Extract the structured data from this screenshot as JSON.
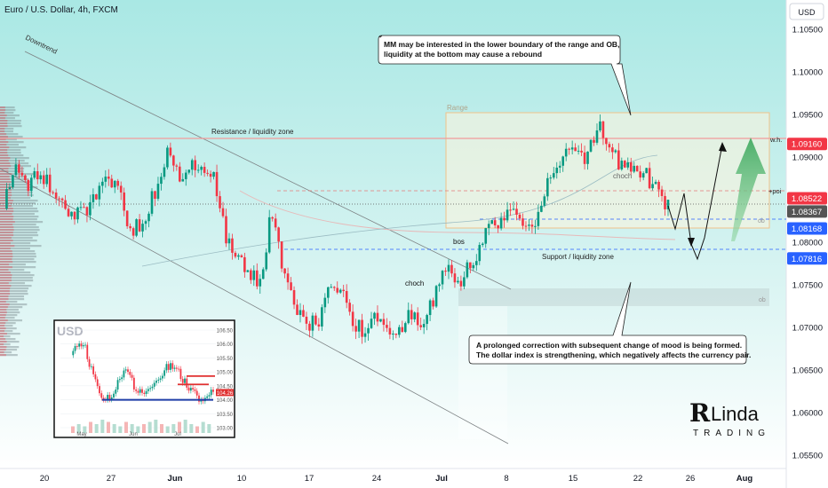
{
  "header": {
    "symbol_title": "Euro / U.S. Dollar, 4h, FXCM"
  },
  "price_axis": {
    "currency": "USD",
    "ticks": [
      "1.10500",
      "1.10000",
      "1.09500",
      "1.09000",
      "1.08500",
      "1.08000",
      "1.07500",
      "1.07000",
      "1.06500",
      "1.06000",
      "1.05500"
    ]
  },
  "time_axis": {
    "ticks": [
      "20",
      "27",
      "Jun",
      "10",
      "17",
      "24",
      "Jul",
      "8",
      "15",
      "22",
      "26",
      "Aug"
    ]
  },
  "price_tags": [
    {
      "value": "1.09160",
      "color": "#f23645"
    },
    {
      "value": "1.08522",
      "color": "#f23645"
    },
    {
      "value": "1.08367",
      "color": "#555555"
    },
    {
      "value": "1.08168",
      "color": "#2962ff"
    },
    {
      "value": "1.07816",
      "color": "#2962ff"
    }
  ],
  "annotations": {
    "downtrend": "Downtrend",
    "resistance": "Resistance / liquidity zone",
    "support": "Support / liquidity zone",
    "range": "Range",
    "bos": "bos",
    "choch_low": "choch",
    "choch_high": "choch",
    "ob_upper": "ob",
    "ob_lower": "ob",
    "wh": "w.h.",
    "poi": "+poi",
    "callout_top_line1": "MM may be interested in the lower boundary of the range and OB,",
    "callout_top_line2": "liquidity at the bottom may cause a rebound",
    "callout_bottom_line1": "A prolonged correction with subsequent change of mood is being formed.",
    "callout_bottom_line2": "The dollar index is strengthening, which negatively affects the currency pair."
  },
  "inset": {
    "title": "USD",
    "price_ticks": [
      "106.50",
      "106.00",
      "105.50",
      "105.00",
      "104.50",
      "104.00",
      "103.50",
      "103.00"
    ],
    "time_ticks": [
      "May",
      "Jun",
      "Jul"
    ],
    "price_tag": "104.26"
  },
  "logo": {
    "line1": "Linda",
    "line2": "TRADING"
  },
  "colors": {
    "up": "#089981",
    "down": "#f23645",
    "range_fill": "#fff3d6",
    "range_border": "#f0c28a",
    "resistance_line": "#f4a1a1",
    "support_line": "#2962ff",
    "bullish_arrow": "#5dbb7a"
  },
  "chart_data": {
    "type": "candlestick",
    "title": "Euro / U.S. Dollar, 4h, FXCM",
    "ylabel": "USD",
    "ylim": [
      1.0535,
      1.1085
    ],
    "x_tick_labels": [
      "20",
      "27",
      "Jun",
      "10",
      "17",
      "24",
      "Jul",
      "8",
      "15",
      "22",
      "26",
      "Aug"
    ],
    "close_path_approx": [
      [
        0,
        1.084
      ],
      [
        3,
        1.0895
      ],
      [
        6,
        1.087
      ],
      [
        9,
        1.088
      ],
      [
        12,
        1.087
      ],
      [
        15,
        1.084
      ],
      [
        18,
        1.0825
      ],
      [
        21,
        1.084
      ],
      [
        24,
        1.0855
      ],
      [
        27,
        1.088
      ],
      [
        30,
        1.0855
      ],
      [
        33,
        1.081
      ],
      [
        36,
        1.083
      ],
      [
        39,
        1.086
      ],
      [
        42,
        1.091
      ],
      [
        45,
        1.088
      ],
      [
        48,
        1.089
      ],
      [
        51,
        1.0895
      ],
      [
        54,
        1.088
      ],
      [
        57,
        1.081
      ],
      [
        60,
        1.078
      ],
      [
        63,
        1.077
      ],
      [
        66,
        1.075
      ],
      [
        69,
        1.084
      ],
      [
        72,
        1.076
      ],
      [
        75,
        1.073
      ],
      [
        78,
        1.07
      ],
      [
        81,
        1.071
      ],
      [
        84,
        1.0745
      ],
      [
        87,
        1.074
      ],
      [
        90,
        1.071
      ],
      [
        93,
        1.0695
      ],
      [
        96,
        1.072
      ],
      [
        99,
        1.07
      ],
      [
        102,
        1.0695
      ],
      [
        105,
        1.072
      ],
      [
        108,
        1.07
      ],
      [
        111,
        1.074
      ],
      [
        114,
        1.077
      ],
      [
        117,
        1.075
      ],
      [
        120,
        1.0775
      ],
      [
        123,
        1.08
      ],
      [
        126,
        1.082
      ],
      [
        129,
        1.0835
      ],
      [
        132,
        1.083
      ],
      [
        135,
        1.0815
      ],
      [
        138,
        1.083
      ],
      [
        141,
        1.089
      ],
      [
        144,
        1.09
      ],
      [
        147,
        1.0905
      ],
      [
        150,
        1.09
      ],
      [
        153,
        1.094
      ],
      [
        156,
        1.0905
      ],
      [
        159,
        1.089
      ],
      [
        162,
        1.0885
      ],
      [
        165,
        1.088
      ],
      [
        168,
        1.086
      ],
      [
        171,
        1.084
      ]
    ],
    "levels": {
      "resistance": 1.0916,
      "poi": 1.08522,
      "current": 1.08367,
      "range_low": 1.08168,
      "support": 1.07816,
      "range_high": 1.0948,
      "range_bottom": 1.0806,
      "ob_high": 1.073,
      "ob_low": 1.071
    },
    "projection": [
      1.084,
      1.081,
      1.083,
      1.0785,
      1.08,
      1.077,
      1.09
    ],
    "inset_close_path": [
      105.6,
      105.9,
      106.1,
      105.2,
      104.6,
      104.2,
      104.1,
      104.3,
      104.8,
      105.0,
      104.6,
      104.3,
      104.2,
      104.6,
      104.5,
      105.0,
      105.3,
      105.1,
      104.7,
      104.5,
      104.3,
      104.0,
      104.2,
      104.26
    ],
    "inset_volume": [
      3,
      4,
      3,
      5,
      4,
      6,
      5,
      4,
      3,
      5,
      4,
      3,
      4,
      5,
      6,
      4,
      3,
      4,
      5,
      6,
      4,
      3,
      5,
      4
    ]
  }
}
